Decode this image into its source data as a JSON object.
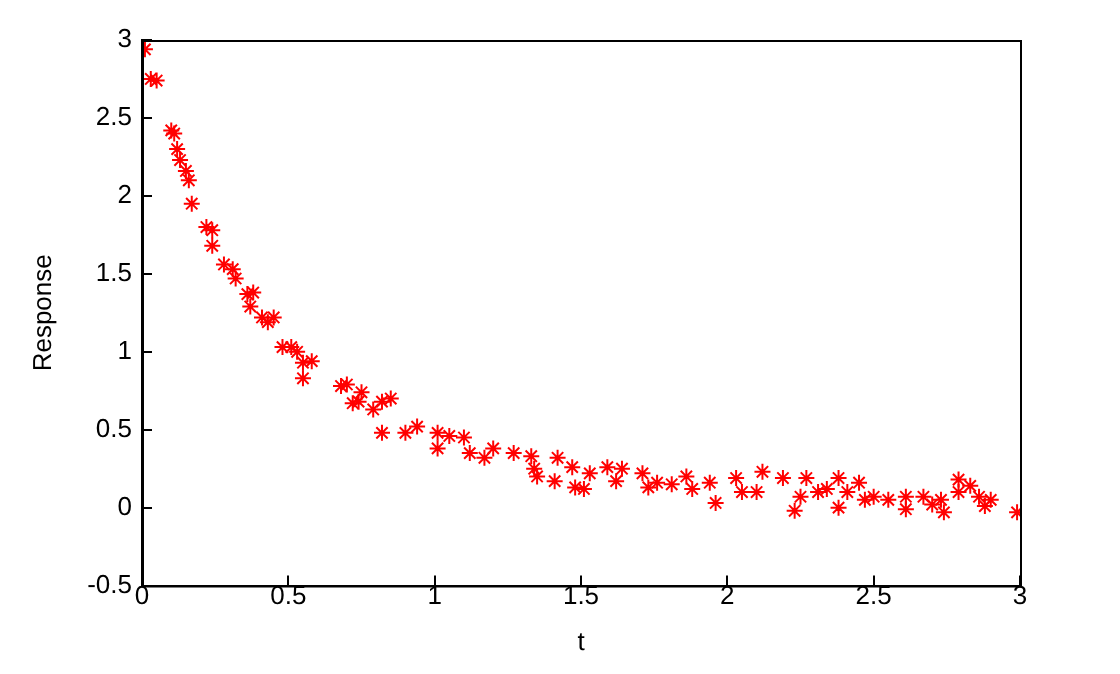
{
  "chart_data": {
    "type": "scatter",
    "xlabel": "t",
    "ylabel": "Response",
    "xlim": [
      0,
      3
    ],
    "ylim": [
      -0.5,
      3
    ],
    "xticks": [
      0,
      0.5,
      1,
      1.5,
      2,
      2.5,
      3
    ],
    "yticks": [
      -0.5,
      0,
      0.5,
      1,
      1.5,
      2,
      2.5,
      3
    ],
    "grid": false,
    "marker": "cross",
    "legend": false,
    "series": [
      {
        "color": "#ff0000",
        "x": [
          0.01,
          0.03,
          0.05,
          0.1,
          0.11,
          0.12,
          0.13,
          0.15,
          0.16,
          0.17,
          0.22,
          0.24,
          0.24,
          0.28,
          0.31,
          0.32,
          0.36,
          0.38,
          0.37,
          0.41,
          0.43,
          0.45,
          0.48,
          0.51,
          0.53,
          0.55,
          0.58,
          0.55,
          0.68,
          0.7,
          0.72,
          0.75,
          0.79,
          0.82,
          0.85,
          0.74,
          0.82,
          0.9,
          0.94,
          1.01,
          1.01,
          1.05,
          1.1,
          1.12,
          1.17,
          1.2,
          1.27,
          1.33,
          1.34,
          1.35,
          1.42,
          1.41,
          1.47,
          1.48,
          1.51,
          1.53,
          1.59,
          1.62,
          1.64,
          1.71,
          1.73,
          1.76,
          1.81,
          1.86,
          1.88,
          1.94,
          1.96,
          2.03,
          2.05,
          2.1,
          2.12,
          2.19,
          2.23,
          2.25,
          2.27,
          2.31,
          2.34,
          2.38,
          2.38,
          2.41,
          2.45,
          2.47,
          2.5,
          2.55,
          2.61,
          2.61,
          2.67,
          2.7,
          2.73,
          2.74,
          2.79,
          2.79,
          2.83,
          2.86,
          2.88,
          2.9,
          2.99
        ],
        "values": [
          2.94,
          2.75,
          2.74,
          2.42,
          2.4,
          2.3,
          2.23,
          2.16,
          2.1,
          1.95,
          1.8,
          1.78,
          1.68,
          1.56,
          1.53,
          1.47,
          1.37,
          1.38,
          1.29,
          1.22,
          1.19,
          1.22,
          1.03,
          1.03,
          1.0,
          0.93,
          0.94,
          0.83,
          0.78,
          0.79,
          0.67,
          0.74,
          0.63,
          0.68,
          0.7,
          0.68,
          0.48,
          0.48,
          0.52,
          0.48,
          0.38,
          0.46,
          0.45,
          0.35,
          0.32,
          0.38,
          0.35,
          0.33,
          0.25,
          0.2,
          0.32,
          0.17,
          0.26,
          0.13,
          0.12,
          0.22,
          0.26,
          0.17,
          0.25,
          0.22,
          0.13,
          0.16,
          0.15,
          0.2,
          0.12,
          0.16,
          0.03,
          0.19,
          0.1,
          0.1,
          0.23,
          0.19,
          -0.02,
          0.07,
          0.19,
          0.1,
          0.12,
          0.19,
          0.0,
          0.1,
          0.16,
          0.05,
          0.07,
          0.05,
          0.07,
          -0.01,
          0.07,
          0.02,
          0.05,
          -0.03,
          0.18,
          0.1,
          0.14,
          0.07,
          0.01,
          0.05,
          -0.03
        ]
      }
    ]
  }
}
